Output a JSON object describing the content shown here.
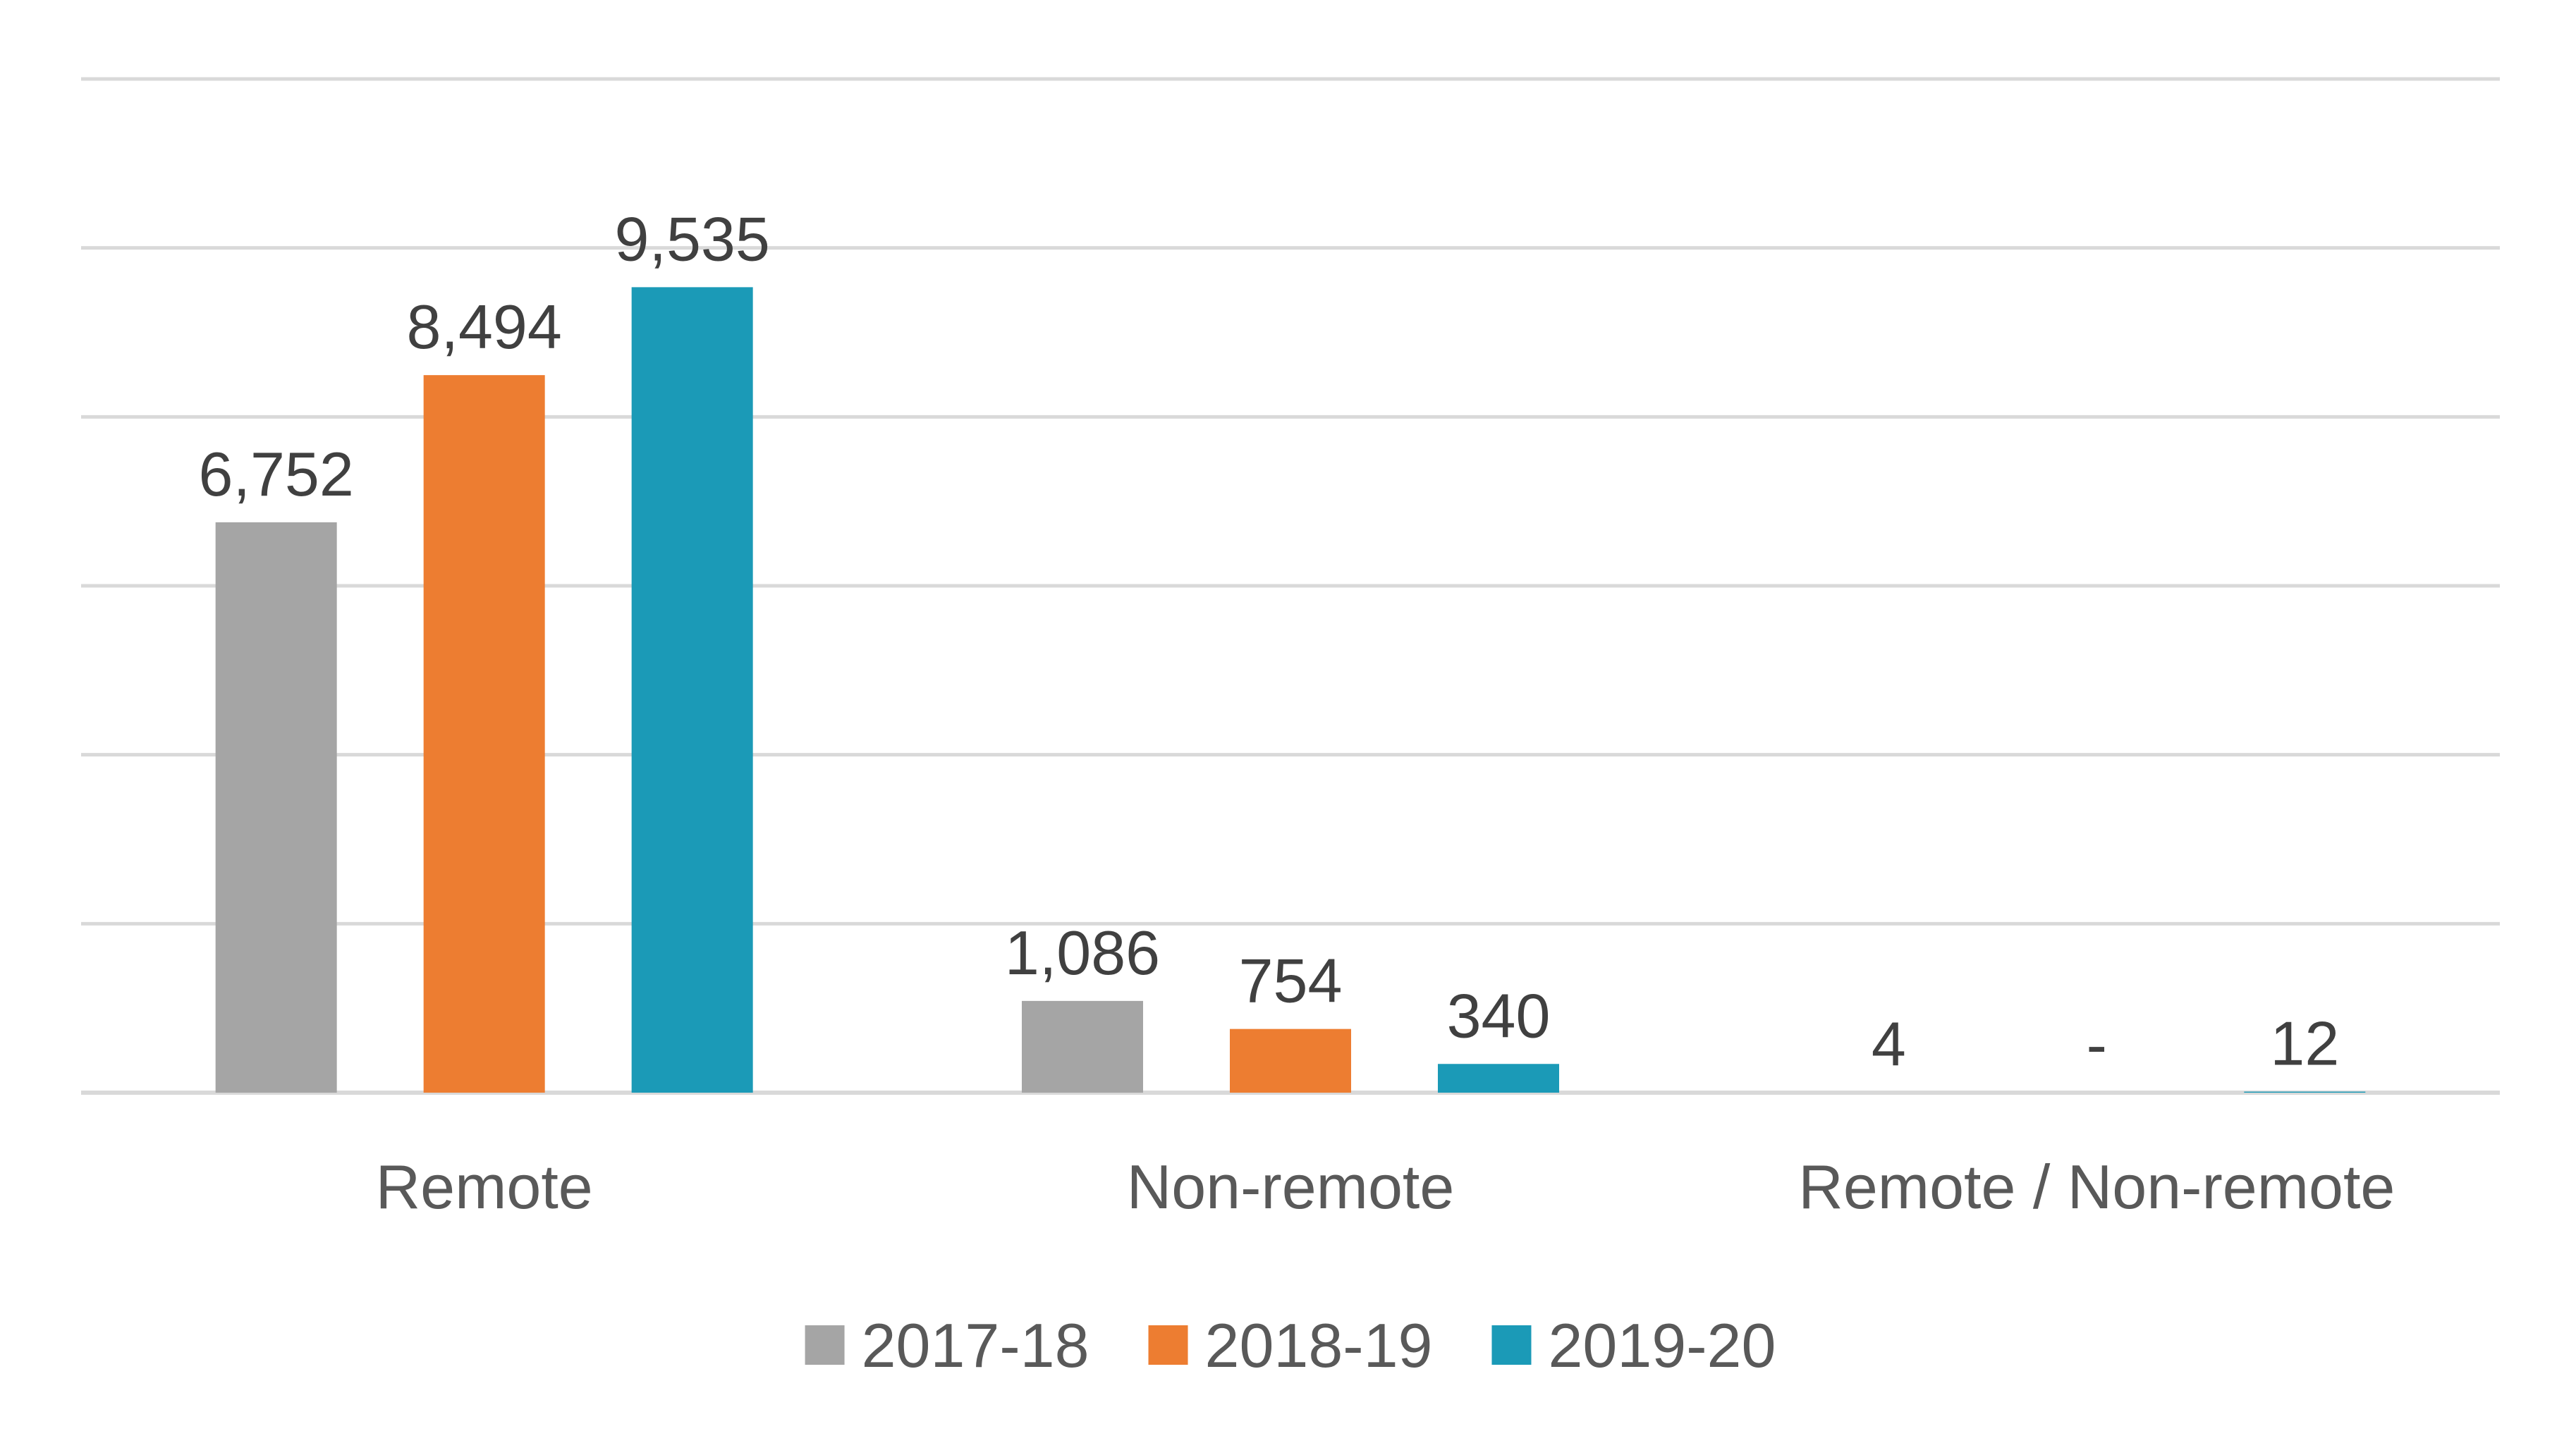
{
  "chart_data": {
    "type": "bar",
    "categories": [
      "Remote",
      "Non-remote",
      "Remote / Non-remote"
    ],
    "series": [
      {
        "name": "2017-18",
        "color": "#a5a5a5",
        "values": [
          6752,
          1086,
          4
        ],
        "labels": [
          "6,752",
          "1,086",
          "4"
        ]
      },
      {
        "name": "2018-19",
        "color": "#ed7d31",
        "values": [
          8494,
          754,
          0
        ],
        "labels": [
          "8,494",
          "754",
          "-"
        ]
      },
      {
        "name": "2019-20",
        "color": "#1b9ab7",
        "values": [
          9535,
          340,
          12
        ],
        "labels": [
          "9,535",
          "340",
          "12"
        ]
      }
    ],
    "ylim": [
      0,
      12000
    ],
    "grid": true,
    "legend_position": "bottom",
    "gridline_color": "#d9d9d9"
  }
}
